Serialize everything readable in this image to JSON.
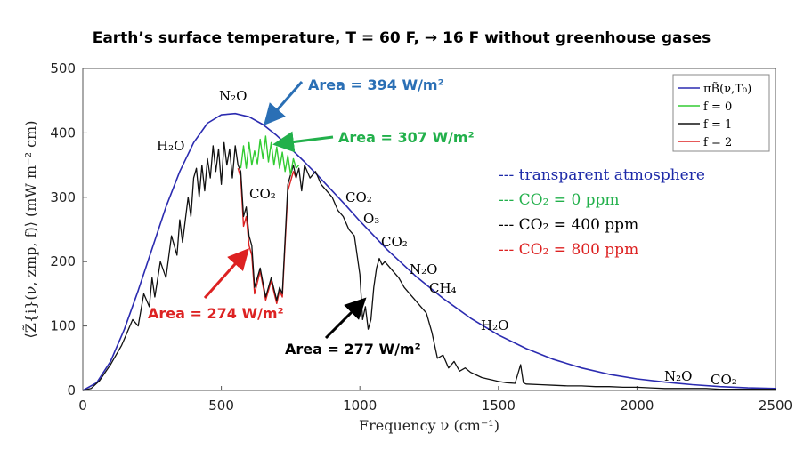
{
  "title": "Earth’s surface temperature, T = 60 F,  →   16 F without greenhouse gases",
  "chart_data": {
    "type": "line",
    "xlabel": "Frequency ν (cm⁻¹)",
    "ylabel": "⟨Z̃{i}(ν, zmp, f)⟩ (mW m⁻² cm)",
    "xlim": [
      0,
      2500
    ],
    "ylim": [
      0,
      500
    ],
    "xticks": [
      "0",
      "500",
      "1000",
      "1500",
      "2000",
      "2500"
    ],
    "yticks": [
      "0",
      "100",
      "200",
      "300",
      "400",
      "500"
    ],
    "legend": {
      "placement": "top-right",
      "entries": [
        "πB̃(ν,T₀)",
        "f = 0",
        "f = 1",
        "f = 2"
      ]
    },
    "colors": {
      "planck": "#2b2bb0",
      "f0": "#33cc33",
      "f1": "#111111",
      "f2": "#dd2222"
    },
    "series": [
      {
        "name": "πB̃(ν,T₀)",
        "x": [
          0,
          50,
          100,
          150,
          200,
          250,
          300,
          350,
          400,
          450,
          500,
          550,
          600,
          650,
          700,
          750,
          800,
          850,
          900,
          950,
          1000,
          1100,
          1200,
          1300,
          1400,
          1500,
          1600,
          1700,
          1800,
          1900,
          2000,
          2100,
          2200,
          2300,
          2400,
          2500
        ],
        "y": [
          0,
          12,
          45,
          95,
          155,
          220,
          285,
          340,
          385,
          415,
          428,
          430,
          425,
          413,
          396,
          376,
          355,
          333,
          310,
          287,
          263,
          218,
          178,
          143,
          112,
          86,
          65,
          48,
          35,
          25,
          18,
          13,
          9,
          6,
          4,
          3
        ]
      },
      {
        "name": "f = 0",
        "x": [
          570,
          580,
          590,
          600,
          610,
          620,
          630,
          640,
          650,
          660,
          670,
          680,
          690,
          700,
          710,
          720,
          730,
          740,
          750,
          760,
          770,
          780
        ],
        "y": [
          345,
          380,
          345,
          385,
          350,
          372,
          352,
          390,
          360,
          395,
          355,
          385,
          350,
          378,
          345,
          370,
          340,
          365,
          335,
          360,
          345,
          350
        ]
      },
      {
        "name": "f = 1",
        "x": [
          0,
          30,
          60,
          100,
          140,
          180,
          200,
          220,
          240,
          250,
          260,
          280,
          300,
          320,
          340,
          350,
          360,
          380,
          390,
          400,
          410,
          420,
          430,
          440,
          450,
          460,
          470,
          480,
          490,
          500,
          510,
          520,
          530,
          540,
          550,
          560,
          570,
          580,
          590,
          600,
          610,
          620,
          640,
          660,
          680,
          700,
          710,
          720,
          740,
          760,
          770,
          780,
          790,
          800,
          820,
          840,
          860,
          880,
          900,
          920,
          940,
          960,
          980,
          1000,
          1010,
          1020,
          1030,
          1040,
          1050,
          1060,
          1070,
          1080,
          1090,
          1100,
          1120,
          1140,
          1160,
          1180,
          1200,
          1220,
          1240,
          1260,
          1280,
          1300,
          1320,
          1340,
          1360,
          1380,
          1400,
          1420,
          1440,
          1460,
          1480,
          1500,
          1530,
          1560,
          1580,
          1590,
          1600,
          1650,
          1700,
          1750,
          1800,
          1850,
          1900,
          1950,
          2000,
          2050,
          2100,
          2150,
          2200,
          2250,
          2300,
          2350,
          2400,
          2450,
          2500
        ],
        "y": [
          0,
          3,
          15,
          40,
          70,
          110,
          100,
          150,
          130,
          175,
          145,
          200,
          175,
          240,
          210,
          265,
          230,
          300,
          270,
          330,
          345,
          300,
          350,
          310,
          360,
          330,
          380,
          340,
          375,
          320,
          385,
          350,
          375,
          330,
          380,
          350,
          340,
          270,
          285,
          240,
          225,
          160,
          190,
          145,
          175,
          140,
          160,
          150,
          320,
          350,
          330,
          345,
          310,
          350,
          330,
          340,
          320,
          310,
          300,
          280,
          270,
          250,
          240,
          180,
          110,
          130,
          95,
          110,
          160,
          190,
          205,
          195,
          200,
          195,
          185,
          175,
          160,
          150,
          140,
          130,
          120,
          90,
          50,
          55,
          35,
          45,
          30,
          35,
          28,
          24,
          20,
          18,
          16,
          14,
          12,
          11,
          40,
          12,
          10,
          9,
          8,
          7,
          7,
          6,
          6,
          5,
          5,
          4,
          3,
          3,
          3,
          3,
          2,
          2,
          2,
          2,
          2
        ]
      },
      {
        "name": "f = 2",
        "x": [
          560,
          570,
          580,
          590,
          600,
          610,
          620,
          640,
          660,
          680,
          700,
          710,
          720,
          740,
          760,
          770
        ],
        "y": [
          345,
          330,
          255,
          270,
          225,
          210,
          150,
          185,
          140,
          170,
          135,
          155,
          145,
          310,
          340,
          330
        ]
      }
    ],
    "annotations": {
      "molecules": [
        "N₂O",
        "H₂O",
        "CO₂",
        "CO₂",
        "O₃",
        "CO₂",
        "N₂O",
        "CH₄",
        "H₂O",
        "N₂O",
        "CO₂"
      ],
      "areas": [
        "Area = 394 W/m²",
        "Area = 307 W/m²",
        "Area = 274 W/m²",
        "Area = 277 W/m²"
      ],
      "cases": [
        "--- transparent atmosphere",
        "--- CO₂ = 0 ppm",
        "--- CO₂ = 400 ppm",
        "--- CO₂ = 800 ppm"
      ]
    }
  }
}
